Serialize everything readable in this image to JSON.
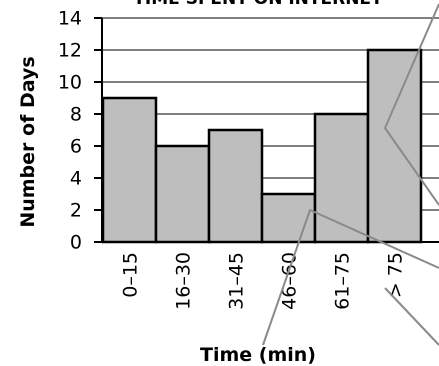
{
  "chart_data": {
    "type": "bar",
    "title": "TIME SPENT ON INTERNET",
    "xlabel": "Time (min)",
    "ylabel": "Number of Days",
    "categories": [
      "0–15",
      "16–30",
      "31–45",
      "46–60",
      "61–75",
      "> 75"
    ],
    "values": [
      9,
      6,
      7,
      3,
      8,
      12
    ],
    "ylim": [
      0,
      14
    ],
    "yticks": [
      "0",
      "2",
      "4",
      "6",
      "8",
      "10",
      "12",
      "14"
    ],
    "grid": true,
    "legend": "none",
    "bar_color": "#bebebe",
    "edge_color": "#000000"
  }
}
